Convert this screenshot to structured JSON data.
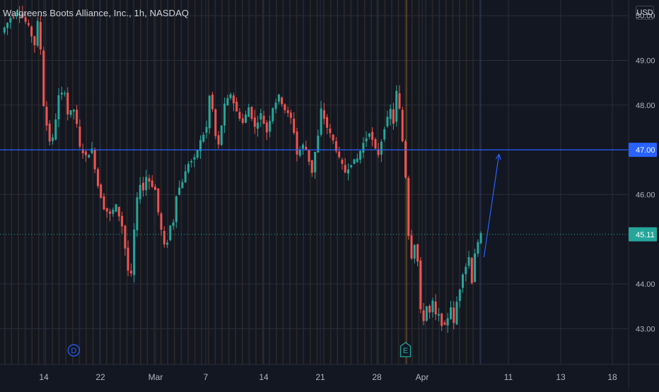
{
  "header": {
    "title": "Walgreens Boots Alliance, Inc., 1h, NASDAQ",
    "currency": "USD"
  },
  "colors": {
    "background": "#131722",
    "grid": "#2a2e39",
    "up": "#26a69a",
    "down": "#ef5350",
    "horizontal_line": "#2962ff",
    "arrow": "#2962ff",
    "last_price": "#26a69a",
    "session_stripe": "#f5a623"
  },
  "chart_data": {
    "type": "candlestick",
    "title": "Walgreens Boots Alliance, Inc., 1h, NASDAQ",
    "ylim": [
      42.2,
      50.35
    ],
    "y_ticks": [
      "50.00",
      "49.00",
      "48.00",
      "46.00",
      "44.00",
      "43.00"
    ],
    "x_ticks": [
      "14",
      "22",
      "Mar",
      "7",
      "14",
      "21",
      "28",
      "Apr",
      "11",
      "13",
      "18"
    ],
    "grid": true,
    "price_labels": [
      {
        "value": 47.0,
        "text": "47.00",
        "color": "#2962ff"
      },
      {
        "value": 45.11,
        "text": "45.11",
        "color": "#26a69a"
      }
    ],
    "horizontal_line": {
      "value": 47.0
    },
    "last_price": 45.11,
    "event_markers": [
      {
        "label": "D",
        "color": "#2962ff",
        "shape": "circle",
        "x_index": 24
      },
      {
        "label": "E",
        "color": "#26a69a",
        "shape": "pentagon",
        "x_index": 134
      }
    ],
    "annotation_arrow": {
      "from": {
        "index": 160,
        "price": 44.6
      },
      "to": {
        "index": 165,
        "price": 46.9
      }
    },
    "path": [
      [
        0,
        49.62
      ],
      [
        3,
        49.95
      ],
      [
        6,
        50.08
      ],
      [
        9,
        49.75
      ],
      [
        11,
        49.35
      ],
      [
        12,
        49.85
      ],
      [
        13,
        49.25
      ],
      [
        14,
        48.0
      ],
      [
        15,
        47.55
      ],
      [
        16,
        47.2
      ],
      [
        17,
        47.25
      ],
      [
        18,
        47.7
      ],
      [
        19,
        48.2
      ],
      [
        21,
        48.3
      ],
      [
        22,
        47.8
      ],
      [
        24,
        47.9
      ],
      [
        25,
        47.55
      ],
      [
        26,
        47.05
      ],
      [
        28,
        46.85
      ],
      [
        30,
        47.0
      ],
      [
        32,
        46.2
      ],
      [
        34,
        45.7
      ],
      [
        36,
        45.55
      ],
      [
        38,
        45.75
      ],
      [
        40,
        45.3
      ],
      [
        41,
        44.8
      ],
      [
        42,
        44.3
      ],
      [
        43,
        44.2
      ],
      [
        44,
        45.2
      ],
      [
        45,
        45.9
      ],
      [
        46,
        46.25
      ],
      [
        47,
        46.1
      ],
      [
        48,
        46.4
      ],
      [
        50,
        46.2
      ],
      [
        51,
        46.1
      ],
      [
        52,
        45.6
      ],
      [
        53,
        45.2
      ],
      [
        54,
        44.85
      ],
      [
        55,
        44.95
      ],
      [
        56,
        45.3
      ],
      [
        57,
        45.4
      ],
      [
        58,
        46.0
      ],
      [
        60,
        46.3
      ],
      [
        62,
        46.7
      ],
      [
        64,
        46.8
      ],
      [
        66,
        47.2
      ],
      [
        68,
        47.5
      ],
      [
        69,
        48.2
      ],
      [
        70,
        47.9
      ],
      [
        71,
        47.3
      ],
      [
        72,
        47.1
      ],
      [
        74,
        48.0
      ],
      [
        76,
        48.25
      ],
      [
        78,
        47.85
      ],
      [
        80,
        47.6
      ],
      [
        82,
        47.95
      ],
      [
        84,
        47.5
      ],
      [
        86,
        47.8
      ],
      [
        88,
        47.4
      ],
      [
        90,
        47.95
      ],
      [
        92,
        48.2
      ],
      [
        94,
        47.9
      ],
      [
        96,
        47.7
      ],
      [
        97,
        47.4
      ],
      [
        98,
        46.9
      ],
      [
        100,
        47.1
      ],
      [
        101,
        47.0
      ],
      [
        102,
        46.75
      ],
      [
        103,
        46.5
      ],
      [
        104,
        46.95
      ],
      [
        105,
        47.3
      ],
      [
        106,
        47.9
      ],
      [
        108,
        47.5
      ],
      [
        110,
        47.2
      ],
      [
        112,
        46.8
      ],
      [
        114,
        46.5
      ],
      [
        116,
        46.7
      ],
      [
        118,
        46.8
      ],
      [
        120,
        47.15
      ],
      [
        122,
        47.4
      ],
      [
        124,
        47.0
      ],
      [
        125,
        46.9
      ],
      [
        126,
        47.2
      ],
      [
        127,
        47.5
      ],
      [
        128,
        47.7
      ],
      [
        129,
        47.9
      ],
      [
        130,
        47.6
      ],
      [
        131,
        48.3
      ],
      [
        132,
        47.9
      ],
      [
        133,
        47.2
      ],
      [
        134,
        46.4
      ],
      [
        135,
        45.1
      ],
      [
        136,
        44.6
      ],
      [
        137,
        44.9
      ],
      [
        138,
        44.5
      ],
      [
        139,
        43.4
      ],
      [
        140,
        43.2
      ],
      [
        141,
        43.5
      ],
      [
        142,
        43.35
      ],
      [
        143,
        43.6
      ],
      [
        144,
        43.3
      ],
      [
        145,
        43.3
      ],
      [
        146,
        43.1
      ],
      [
        147,
        43.05
      ],
      [
        148,
        43.25
      ],
      [
        149,
        43.5
      ],
      [
        150,
        43.1
      ],
      [
        151,
        43.6
      ],
      [
        152,
        43.9
      ],
      [
        153,
        44.25
      ],
      [
        154,
        44.4
      ],
      [
        155,
        44.6
      ],
      [
        156,
        44.05
      ],
      [
        157,
        44.7
      ],
      [
        158,
        44.9
      ],
      [
        159,
        45.11
      ]
    ]
  }
}
